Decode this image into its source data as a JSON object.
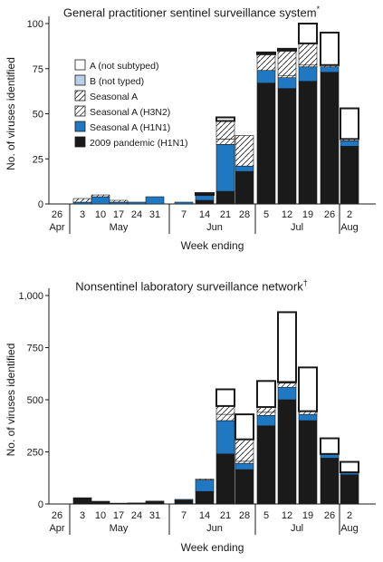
{
  "colors": {
    "pandemic": "#1a1a1a",
    "h1n1": "#1f78c1",
    "h3n2": "hatch-diagonal",
    "seasonal_a": "hatch-diagonal-fine",
    "b_not_typed": "#b9cfe8",
    "a_not_subtyped": "#ffffff"
  },
  "chart_data": [
    {
      "type": "bar",
      "stacked": true,
      "title": "General practitioner sentinel surveillance system",
      "title_mark": "*",
      "xlabel": "Week ending",
      "ylabel": "No. of viruses identified",
      "ylim": [
        0,
        100
      ],
      "yticks": [
        "0",
        "25",
        "50",
        "75",
        "100"
      ],
      "categories": [
        "26",
        "3",
        "10",
        "17",
        "24",
        "31",
        "7",
        "14",
        "21",
        "28",
        "5",
        "12",
        "19",
        "26",
        "2"
      ],
      "months": [
        "Apr",
        "May",
        "Jun",
        "Jul",
        "Aug"
      ],
      "legend": [
        "A (not subtyped)",
        "B (not typed)",
        "Seasonal A",
        "Seasonal A (H3N2)",
        "Seasonal A (H1N1)",
        "2009 pandemic (H1N1)"
      ],
      "legend_position": "top-left",
      "series": [
        {
          "name": "2009 pandemic (H1N1)",
          "values": [
            0,
            0,
            0,
            0,
            0,
            0,
            0,
            2,
            7,
            18,
            67,
            64,
            68,
            73,
            32
          ]
        },
        {
          "name": "Seasonal A (H1N1)",
          "values": [
            0,
            1,
            4,
            1,
            1,
            4,
            1,
            3,
            26,
            3,
            7,
            6,
            8,
            3,
            3
          ]
        },
        {
          "name": "Seasonal A (H3N2)",
          "values": [
            0,
            0,
            0,
            0,
            0,
            0,
            0,
            0,
            3,
            0,
            0,
            1,
            1,
            1,
            1
          ]
        },
        {
          "name": "Seasonal A",
          "values": [
            0,
            2,
            1,
            1,
            0,
            0,
            0,
            0,
            10,
            17,
            9,
            14,
            12,
            0,
            0
          ]
        },
        {
          "name": "B (not typed)",
          "values": [
            0,
            0,
            0,
            0,
            0,
            0,
            0,
            0,
            0,
            0,
            0,
            0,
            0,
            0,
            0
          ]
        },
        {
          "name": "A (not subtyped)",
          "values": [
            0,
            0,
            0,
            0,
            0,
            0,
            0,
            1,
            2,
            0,
            1,
            1,
            11,
            18,
            17
          ]
        }
      ]
    },
    {
      "type": "bar",
      "stacked": true,
      "title": "Nonsentinel laboratory surveillance network",
      "title_mark": "†",
      "xlabel": "Week ending",
      "ylabel": "No. of viruses identified",
      "ylim": [
        0,
        1000
      ],
      "yticks": [
        "0",
        "250",
        "500",
        "750",
        "1,000"
      ],
      "categories": [
        "26",
        "3",
        "10",
        "17",
        "24",
        "31",
        "7",
        "14",
        "21",
        "28",
        "5",
        "12",
        "19",
        "26",
        "2"
      ],
      "months": [
        "Apr",
        "May",
        "Jun",
        "Jul",
        "Aug"
      ],
      "series": [
        {
          "name": "2009 pandemic (H1N1)",
          "values": [
            0,
            28,
            12,
            3,
            4,
            12,
            18,
            60,
            240,
            165,
            375,
            500,
            400,
            220,
            140
          ]
        },
        {
          "name": "Seasonal A (H1N1)",
          "values": [
            0,
            2,
            1,
            1,
            1,
            2,
            4,
            55,
            160,
            30,
            50,
            60,
            30,
            20,
            12
          ]
        },
        {
          "name": "Seasonal A (H3N2)",
          "values": [
            0,
            0,
            0,
            0,
            0,
            0,
            0,
            5,
            30,
            10,
            15,
            20,
            15,
            0,
            0
          ]
        },
        {
          "name": "Seasonal A",
          "values": [
            0,
            0,
            0,
            0,
            0,
            0,
            0,
            0,
            40,
            105,
            25,
            5,
            0,
            0,
            0
          ]
        },
        {
          "name": "B (not typed)",
          "values": [
            0,
            0,
            0,
            0,
            0,
            0,
            0,
            0,
            0,
            0,
            0,
            0,
            0,
            0,
            0
          ]
        },
        {
          "name": "A (not subtyped)",
          "values": [
            0,
            0,
            0,
            0,
            0,
            0,
            0,
            0,
            80,
            120,
            125,
            335,
            210,
            75,
            50
          ]
        }
      ]
    }
  ]
}
